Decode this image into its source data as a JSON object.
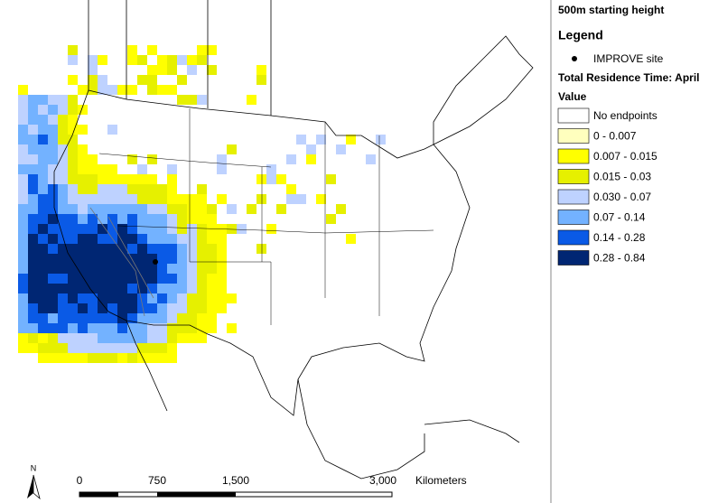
{
  "map": {
    "title": "500m starting height",
    "legend": {
      "title": "Legend",
      "site_label": "IMPROVE site",
      "subtitle": "Total Residence Time: April",
      "field": "Value",
      "classes": [
        {
          "label": "No endpoints",
          "color": "#ffffff"
        },
        {
          "label": "0 - 0.007",
          "color": "#ffffbe"
        },
        {
          "label": "0.007 - 0.015",
          "color": "#ffff00"
        },
        {
          "label": "0.015 - 0.03",
          "color": "#e6f000"
        },
        {
          "label": "0.030 - 0.07",
          "color": "#bed2ff"
        },
        {
          "label": "0.07 - 0.14",
          "color": "#73b2ff"
        },
        {
          "label": "0.14 - 0.28",
          "color": "#0a5ae6"
        },
        {
          "label": "0.28 - 0.84",
          "color": "#002673"
        }
      ]
    },
    "scale_bar": {
      "ticks": [
        "0",
        "750",
        "1,500",
        "3,000"
      ],
      "unit": "Kilometers"
    },
    "north": "N"
  }
}
